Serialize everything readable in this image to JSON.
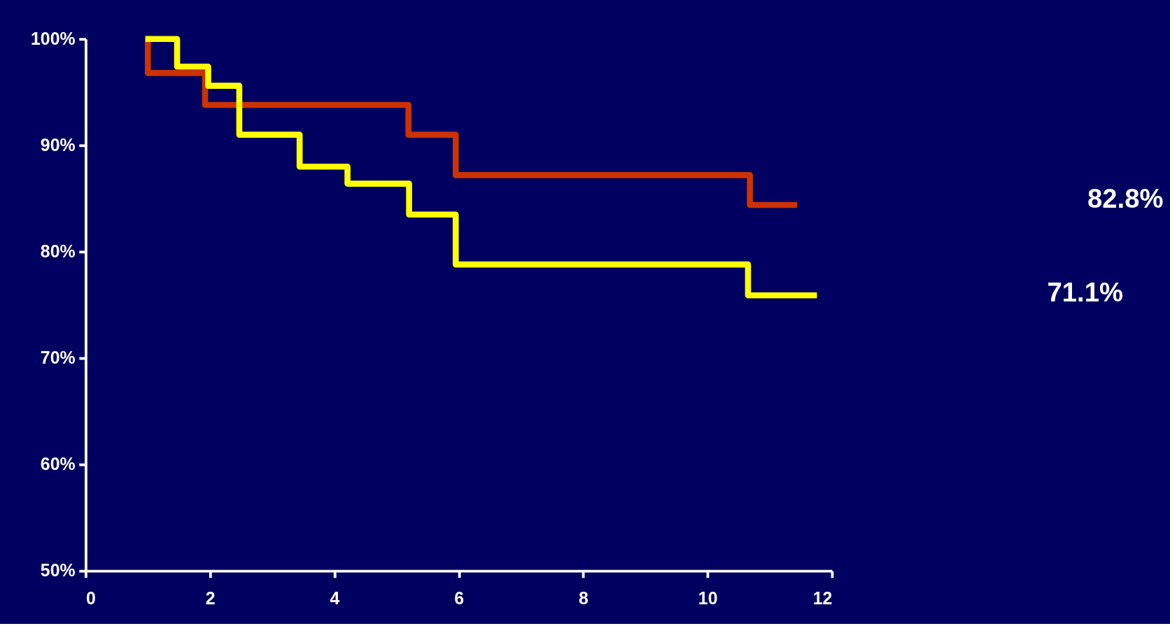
{
  "chart_data": {
    "type": "step",
    "xlim": [
      0,
      12
    ],
    "ylim": [
      50,
      100
    ],
    "xticks": [
      0,
      2,
      4,
      6,
      8,
      10,
      12
    ],
    "yticks": [
      {
        "value": 50,
        "label": "50%"
      },
      {
        "value": 60,
        "label": "60%"
      },
      {
        "value": 70,
        "label": "70%"
      },
      {
        "value": 80,
        "label": "80%"
      },
      {
        "value": 90,
        "label": "90%"
      },
      {
        "value": 100,
        "label": "100%"
      }
    ],
    "grid": false,
    "marker": "none",
    "line_style": "solid",
    "series": [
      {
        "color": "#cc3300",
        "x": [
          1,
          1,
          1.92,
          5.19,
          5.95,
          10.68,
          11.39
        ],
        "values": [
          100,
          96.8,
          93.8,
          91.0,
          87.2,
          84.4,
          84.4
        ]
      },
      {
        "color": "#ffff00",
        "x": [
          1.01,
          1.47,
          1.97,
          2.47,
          3.44,
          4.21,
          5.2,
          5.95,
          10.65,
          11.71
        ],
        "values": [
          100,
          97.4,
          95.6,
          91.0,
          88.0,
          86.4,
          83.5,
          78.8,
          75.9,
          75.9
        ]
      }
    ],
    "annotations": [
      "82.8%",
      "71.1%"
    ]
  }
}
